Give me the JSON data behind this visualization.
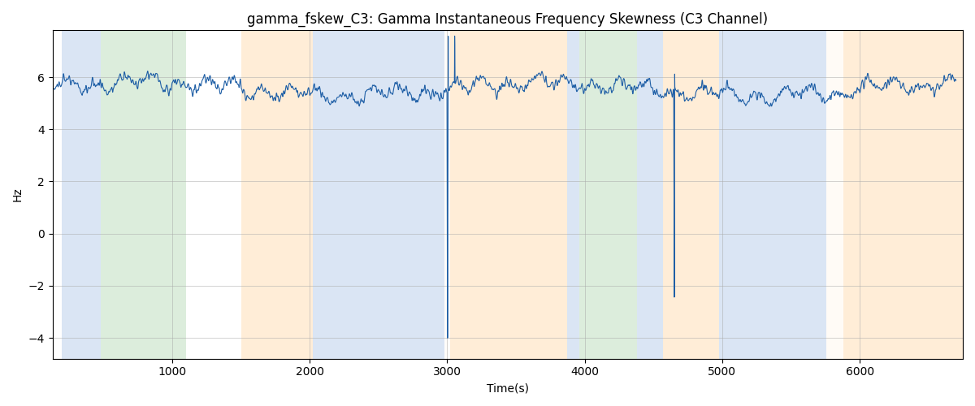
{
  "title": "gamma_fskew_C3: Gamma Instantaneous Frequency Skewness (C3 Channel)",
  "xlabel": "Time(s)",
  "ylabel": "Hz",
  "ylim": [
    -4.8,
    7.8
  ],
  "xlim": [
    130,
    6750
  ],
  "background_color": "#ffffff",
  "line_color": "#1f5fa6",
  "line_width": 0.8,
  "signal_mean": 5.55,
  "signal_std": 0.35,
  "colored_bands": [
    {
      "start": 200,
      "end": 480,
      "color": "#aec6e8",
      "alpha": 0.45
    },
    {
      "start": 480,
      "end": 1100,
      "color": "#b2d8b2",
      "alpha": 0.45
    },
    {
      "start": 1500,
      "end": 1980,
      "color": "#ffd9a8",
      "alpha": 0.45
    },
    {
      "start": 1980,
      "end": 2020,
      "color": "#ffd9a8",
      "alpha": 0.45
    },
    {
      "start": 2020,
      "end": 2980,
      "color": "#aec6e8",
      "alpha": 0.45
    },
    {
      "start": 2980,
      "end": 3020,
      "color": "#ffd9a8",
      "alpha": 0.05
    },
    {
      "start": 3020,
      "end": 3870,
      "color": "#ffd9a8",
      "alpha": 0.45
    },
    {
      "start": 3870,
      "end": 3960,
      "color": "#aec6e8",
      "alpha": 0.45
    },
    {
      "start": 3960,
      "end": 4380,
      "color": "#b2d8b2",
      "alpha": 0.45
    },
    {
      "start": 4380,
      "end": 4570,
      "color": "#aec6e8",
      "alpha": 0.45
    },
    {
      "start": 4570,
      "end": 4980,
      "color": "#ffd9a8",
      "alpha": 0.45
    },
    {
      "start": 4980,
      "end": 5760,
      "color": "#aec6e8",
      "alpha": 0.45
    },
    {
      "start": 5760,
      "end": 5880,
      "color": "#ffd9a8",
      "alpha": 0.1
    },
    {
      "start": 5880,
      "end": 6750,
      "color": "#ffd9a8",
      "alpha": 0.45
    }
  ],
  "seed": 42,
  "n_points": 6700,
  "title_fontsize": 12,
  "xticks": [
    1000,
    2000,
    3000,
    4000,
    5000,
    6000
  ],
  "yticks": [
    -4,
    -2,
    0,
    2,
    4,
    6
  ],
  "grid_color": "#aaaaaa",
  "grid_alpha": 0.6,
  "grid_lw": 0.6
}
